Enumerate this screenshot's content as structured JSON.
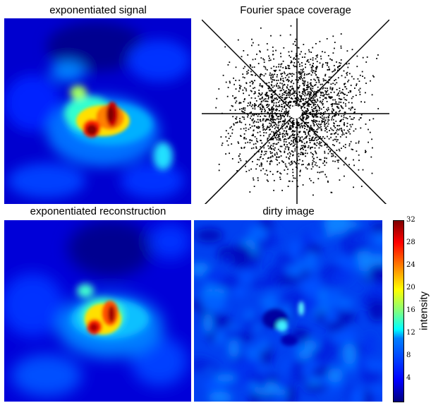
{
  "panels": {
    "signal": {
      "title": "exponentiated signal"
    },
    "coverage": {
      "title": "Fourier space coverage"
    },
    "reconstruction": {
      "title": "exponentiated reconstruction"
    },
    "dirty": {
      "title": "dirty image"
    }
  },
  "colorbar": {
    "label": "intensity",
    "ticks": [
      "32",
      "28",
      "24",
      "20",
      "16",
      "12",
      "8",
      "4"
    ],
    "range": [
      0,
      32
    ],
    "colormap": "jet",
    "colors": [
      "#00007f",
      "#0000ff",
      "#007fff",
      "#00ffff",
      "#7fff7f",
      "#ffff00",
      "#ff7f00",
      "#ff0000",
      "#7f0000"
    ]
  }
}
